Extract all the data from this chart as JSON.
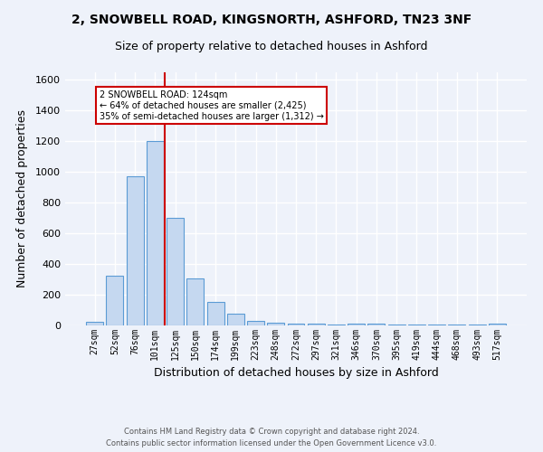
{
  "title1": "2, SNOWBELL ROAD, KINGSNORTH, ASHFORD, TN23 3NF",
  "title2": "Size of property relative to detached houses in Ashford",
  "xlabel": "Distribution of detached houses by size in Ashford",
  "ylabel": "Number of detached properties",
  "footer1": "Contains HM Land Registry data © Crown copyright and database right 2024.",
  "footer2": "Contains public sector information licensed under the Open Government Licence v3.0.",
  "bar_labels": [
    "27sqm",
    "52sqm",
    "76sqm",
    "101sqm",
    "125sqm",
    "150sqm",
    "174sqm",
    "199sqm",
    "223sqm",
    "248sqm",
    "272sqm",
    "297sqm",
    "321sqm",
    "346sqm",
    "370sqm",
    "395sqm",
    "419sqm",
    "444sqm",
    "468sqm",
    "493sqm",
    "517sqm"
  ],
  "bar_values": [
    25,
    325,
    970,
    1200,
    700,
    305,
    155,
    75,
    30,
    20,
    12,
    10,
    8,
    10,
    12,
    3,
    3,
    3,
    3,
    3,
    10
  ],
  "bar_color": "#c5d8f0",
  "bar_edge_color": "#5b9bd5",
  "vline_color": "#cc0000",
  "annotation_text": "2 SNOWBELL ROAD: 124sqm\n← 64% of detached houses are smaller (2,425)\n35% of semi-detached houses are larger (1,312) →",
  "annotation_box_color": "#ffffff",
  "annotation_box_edgecolor": "#cc0000",
  "ylim": [
    0,
    1650
  ],
  "background_color": "#eef2fa",
  "grid_color": "#ffffff",
  "title1_fontsize": 10,
  "title2_fontsize": 9,
  "xlabel_fontsize": 9,
  "ylabel_fontsize": 9
}
